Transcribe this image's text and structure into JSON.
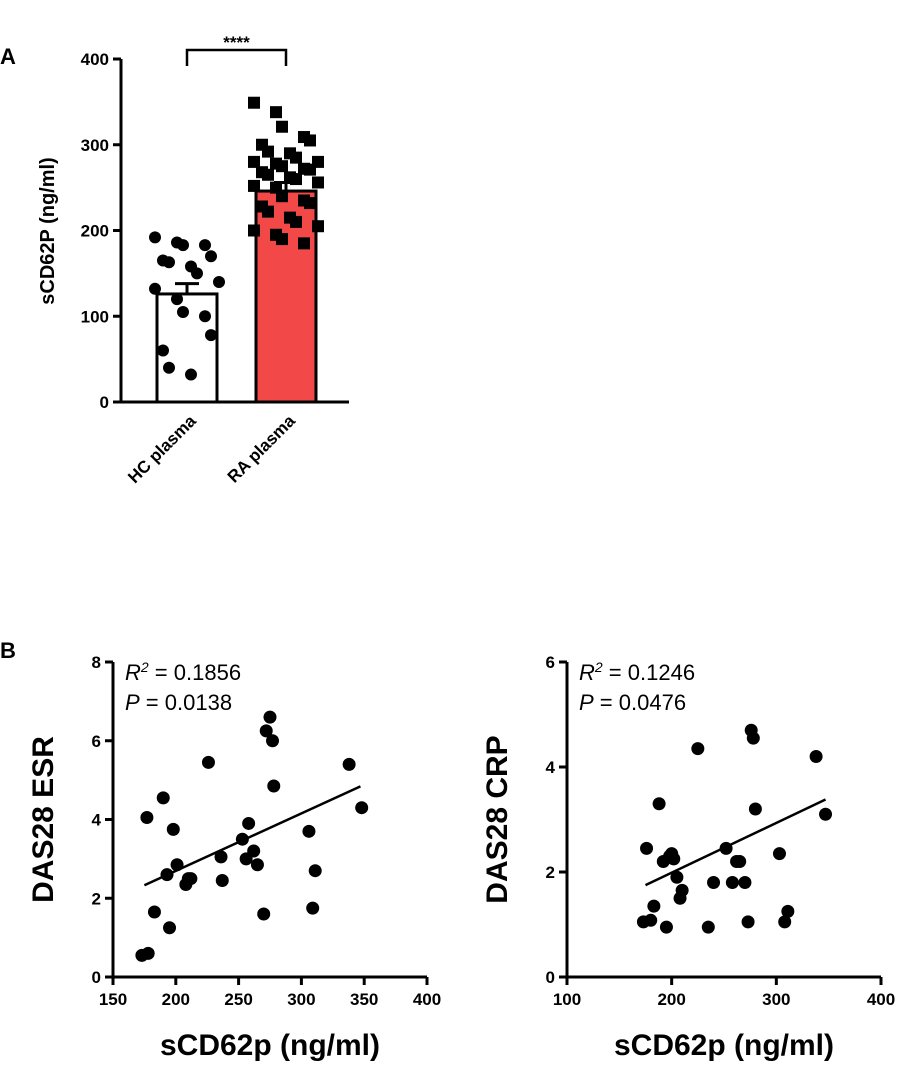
{
  "panels": {
    "a": "A",
    "b": "B"
  },
  "colors": {
    "hc_fill": "#ffffff",
    "ra_fill": "#f24848",
    "marker": "#000000"
  },
  "chart_data": [
    {
      "type": "bar",
      "panel": "A",
      "categories": [
        "HC plasma",
        "RA plasma"
      ],
      "values": [
        126,
        246
      ],
      "sem": [
        12,
        10
      ],
      "ylabel": "sCD62P (ng/ml)",
      "ylim": [
        0,
        400
      ],
      "yticks": [
        0,
        100,
        200,
        300,
        400
      ],
      "significance": "****",
      "points": {
        "HC plasma": [
          192,
          186,
          183,
          183,
          170,
          165,
          163,
          158,
          150,
          140,
          132,
          120,
          105,
          100,
          78,
          60,
          40,
          32
        ],
        "RA plasma": [
          349,
          338,
          321,
          309,
          305,
          300,
          292,
          290,
          285,
          280,
          280,
          278,
          275,
          272,
          271,
          268,
          265,
          262,
          260,
          256,
          252,
          250,
          240,
          235,
          232,
          228,
          222,
          215,
          210,
          205,
          200,
          195,
          190,
          185
        ]
      }
    },
    {
      "type": "scatter",
      "panel": "B-left",
      "xlabel": "sCD62p (ng/ml)",
      "ylabel": "DAS28 ESR",
      "xlim": [
        150,
        400
      ],
      "ylim": [
        0,
        8
      ],
      "xticks": [
        150,
        200,
        250,
        300,
        350,
        400
      ],
      "yticks": [
        0,
        2,
        4,
        6,
        8
      ],
      "annotation": {
        "r2_label": "R",
        "r2_sup": "2",
        "r2_value": " = 0.1856",
        "p_label": "P",
        "p_value": " = 0.0138"
      },
      "trendline": {
        "x": [
          175,
          347
        ],
        "y": [
          2.33,
          4.84
        ]
      },
      "x": [
        173,
        178,
        177,
        183,
        190,
        193,
        195,
        198,
        201,
        208,
        210,
        212,
        226,
        236,
        237,
        253,
        256,
        258,
        262,
        265,
        270,
        272,
        275,
        277,
        278,
        306,
        309,
        311,
        338,
        348
      ],
      "y": [
        0.55,
        0.6,
        4.05,
        1.65,
        4.55,
        2.6,
        1.25,
        3.75,
        2.85,
        2.35,
        2.5,
        2.5,
        5.45,
        3.05,
        2.45,
        3.5,
        3.0,
        3.9,
        3.2,
        2.85,
        1.6,
        6.25,
        6.6,
        6.0,
        4.85,
        3.7,
        1.75,
        2.7,
        5.4,
        4.3
      ]
    },
    {
      "type": "scatter",
      "panel": "B-right",
      "xlabel": "sCD62p (ng/ml)",
      "ylabel": "DAS28 CRP",
      "xlim": [
        100,
        400
      ],
      "ylim": [
        0,
        6
      ],
      "xticks": [
        100,
        200,
        300,
        400
      ],
      "yticks": [
        0,
        2,
        4,
        6
      ],
      "annotation": {
        "r2_label": "R",
        "r2_sup": "2",
        "r2_value": " = 0.1246",
        "p_label": "P",
        "p_value": " = 0.0476"
      },
      "trendline": {
        "x": [
          175,
          347
        ],
        "y": [
          1.75,
          3.38
        ]
      },
      "x": [
        173,
        176,
        180,
        183,
        188,
        192,
        195,
        198,
        200,
        202,
        205,
        208,
        210,
        225,
        235,
        240,
        252,
        258,
        262,
        265,
        270,
        273,
        276,
        278,
        280,
        303,
        308,
        311,
        338,
        347
      ],
      "y": [
        1.05,
        2.45,
        1.08,
        1.35,
        3.3,
        2.2,
        0.95,
        2.3,
        2.35,
        2.25,
        1.9,
        1.5,
        1.65,
        4.35,
        0.95,
        1.8,
        2.45,
        1.8,
        2.2,
        2.2,
        1.8,
        1.05,
        4.7,
        4.55,
        3.2,
        2.35,
        1.05,
        1.25,
        4.2,
        3.1
      ]
    }
  ]
}
